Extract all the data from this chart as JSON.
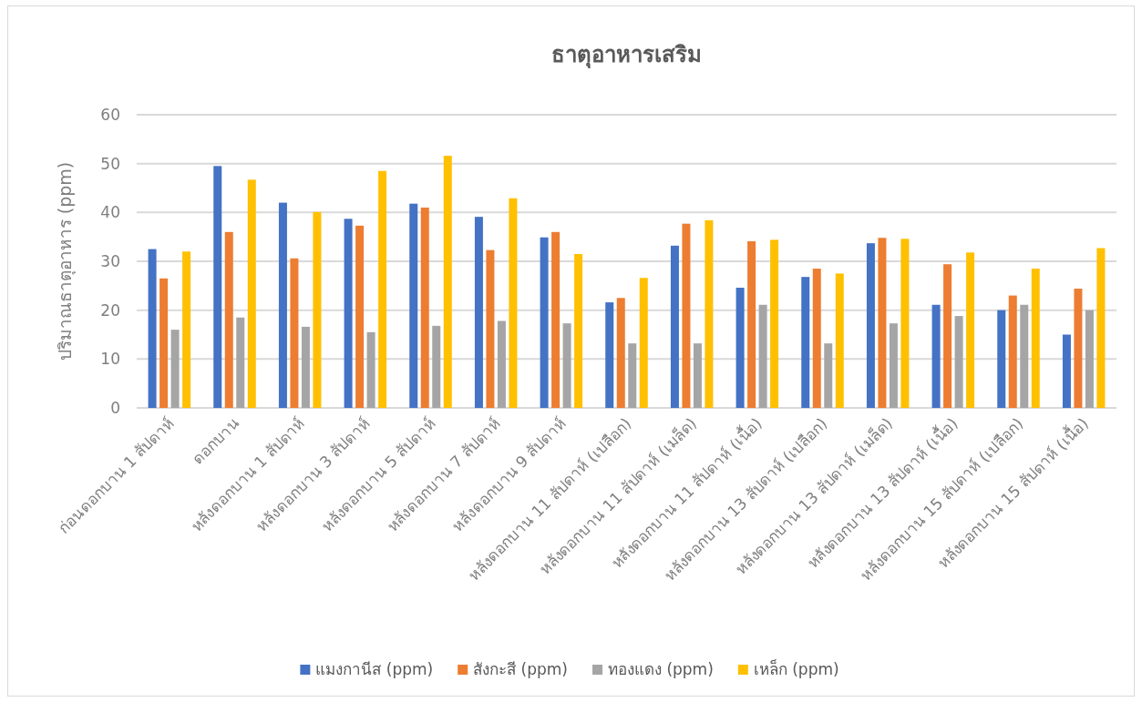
{
  "chart_data": {
    "type": "bar",
    "title": "ธาตุอาหารเสริม",
    "ylabel": "ปริมาณธาตุอาหาร (ppm)",
    "categories": [
      "ก่อนดอกบาน 1 สัปดาห์",
      "ดอกบาน",
      "หลังดอกบาน 1 สัปดาห์",
      "หลังดอกบาน 3 สัปดาห์",
      "หลังดอกบาน 5 สัปดาห์",
      "หลังดอกบาน 7 สัปดาห์",
      "หลังดอกบาน 9 สัปดาห์",
      "หลังดอกบาน 11 สัปดาห์ (เปลือก)",
      "หลังดอกบาน 11 สัปดาห์ (เมล็ด)",
      "หลังดอกบาน 11 สัปดาห์ (เนื้อ)",
      "หลังดอกบาน 13 สัปดาห์ (เปลือก)",
      "หลังดอกบาน 13 สัปดาห์ (เมล็ด)",
      "หลังดอกบาน 13 สัปดาห์ (เนื้อ)",
      "หลังดอกบาน 15 สัปดาห์ (เปลือก)",
      "หลังดอกบาน 15 สัปดาห์ (เนื้อ)"
    ],
    "series": [
      {
        "name": "แมงกานีส (ppm)",
        "color": "#4472c4",
        "values": [
          32.5,
          49.5,
          42,
          38.7,
          41.8,
          39.1,
          34.9,
          21.6,
          33.2,
          24.6,
          26.8,
          33.7,
          21.1,
          20,
          15
        ]
      },
      {
        "name": "สังกะสี (ppm)",
        "color": "#ed7d31",
        "values": [
          26.5,
          36,
          30.6,
          37.3,
          41,
          32.3,
          36,
          22.5,
          37.7,
          34.1,
          28.5,
          34.8,
          29.4,
          23,
          24.4
        ]
      },
      {
        "name": "ทองแดง (ppm)",
        "color": "#a5a5a5",
        "values": [
          16,
          18.5,
          16.6,
          15.5,
          16.8,
          17.8,
          17.3,
          13.2,
          13.2,
          21.1,
          13.2,
          17.3,
          18.8,
          21.1,
          20
        ]
      },
      {
        "name": "เหล็ก (ppm)",
        "color": "#ffc000",
        "values": [
          32,
          46.7,
          40.1,
          48.5,
          51.6,
          42.9,
          31.5,
          26.6,
          38.4,
          34.4,
          27.5,
          34.6,
          31.8,
          28.5,
          32.7
        ]
      }
    ],
    "ylim": [
      0,
      60
    ],
    "yticks": [
      0,
      10,
      20,
      30,
      40,
      50,
      60
    ],
    "grid": "y",
    "legend": "bottom"
  }
}
